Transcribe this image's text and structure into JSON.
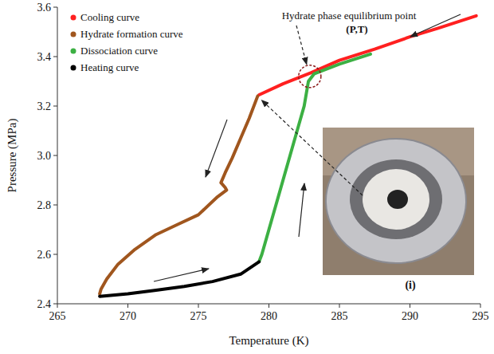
{
  "chart_data": {
    "type": "line",
    "x_label": "Temperature (K)",
    "y_label": "Pressure (MPa)",
    "xlim": [
      265,
      295
    ],
    "xticks": [
      265,
      270,
      275,
      280,
      285,
      290,
      295
    ],
    "ylim": [
      2.4,
      3.6
    ],
    "yticks": [
      2.4,
      2.6,
      2.8,
      {
        "value": 3,
        "label": "3.0"
      },
      3.2,
      3.4,
      3.6
    ],
    "grid": false,
    "legend": "upper left",
    "series": [
      {
        "name": "Cooling curve",
        "color": "#ff2020",
        "x": [
          294.7,
          292,
          290,
          287.5,
          285,
          283,
          281,
          279.3
        ],
        "values": [
          3.565,
          3.515,
          3.48,
          3.43,
          3.385,
          3.335,
          3.29,
          3.245
        ]
      },
      {
        "name": "Hydrate formation curve",
        "color": "#a0561e",
        "x": [
          279.2,
          278.6,
          278.0,
          277.4,
          276.9,
          276.6,
          276.9,
          277.0,
          276.3,
          275.0,
          273.5,
          272.0,
          270.5,
          269.3,
          268.5,
          268.1,
          268.0
        ],
        "values": [
          3.24,
          3.15,
          3.07,
          2.99,
          2.93,
          2.89,
          2.87,
          2.86,
          2.83,
          2.76,
          2.72,
          2.68,
          2.62,
          2.56,
          2.5,
          2.46,
          2.44
        ]
      },
      {
        "name": "Dissociation curve",
        "color": "#3cb043",
        "x": [
          279.3,
          279.5,
          280.0,
          280.5,
          281.0,
          281.5,
          282.0,
          282.5,
          282.8,
          283.2,
          285.0,
          287.2
        ],
        "values": [
          2.57,
          2.6,
          2.7,
          2.8,
          2.9,
          3.0,
          3.1,
          3.2,
          3.3,
          3.33,
          3.37,
          3.41
        ]
      },
      {
        "name": "Heating curve",
        "color": "#000000",
        "x": [
          268.0,
          270.0,
          272.0,
          274.0,
          276.0,
          278.0,
          279.3
        ],
        "values": [
          2.43,
          2.44,
          2.455,
          2.47,
          2.49,
          2.52,
          2.57
        ]
      }
    ],
    "equilibrium_point": {
      "label": "Hydrate phase equilibrium point",
      "sublabel": "(P,T)",
      "x": 282.9,
      "y": 3.32
    },
    "inset_label": "(i)"
  }
}
